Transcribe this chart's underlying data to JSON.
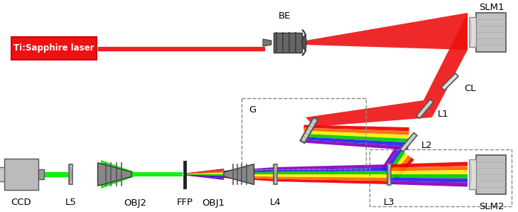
{
  "fig_width": 7.29,
  "fig_height": 2.98,
  "dpi": 100,
  "bg_color": "#ffffff",
  "labels": {
    "laser": "Ti:Sapphire laser",
    "BE": "BE",
    "SLM1": "SLM1",
    "CL": "CL",
    "G": "G",
    "L1": "L1",
    "L2": "L2",
    "L3": "L3",
    "SLM2": "SLM2",
    "L4": "L4",
    "OBJ1": "OBJ1",
    "FFP": "FFP",
    "OBJ2": "OBJ2",
    "L5": "L5",
    "CCD": "CCD"
  },
  "font_size": 9.5
}
